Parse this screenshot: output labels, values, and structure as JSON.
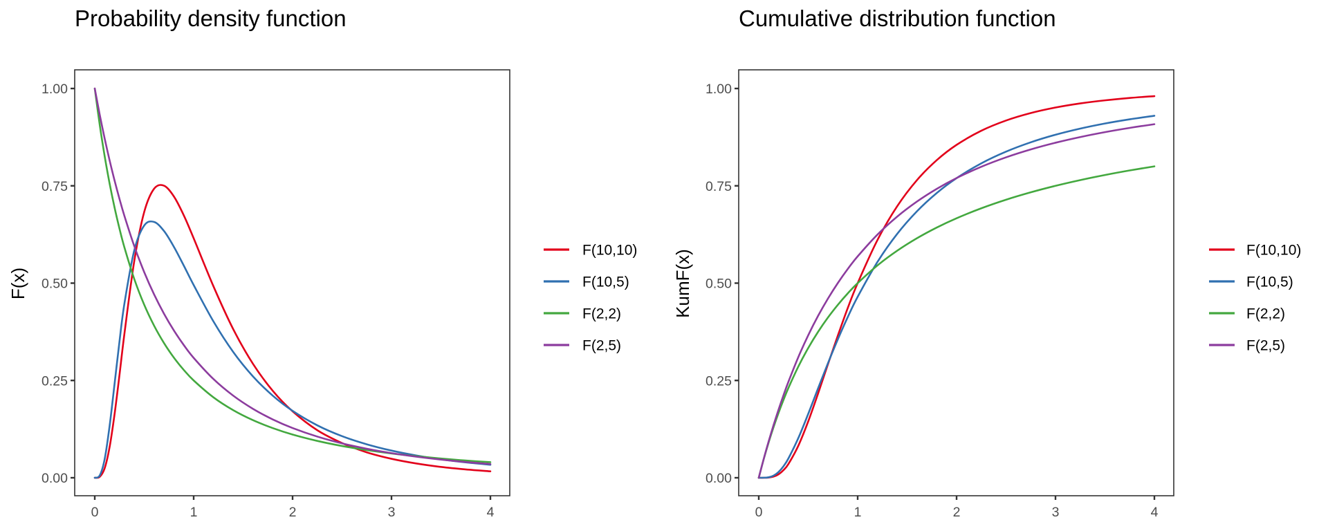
{
  "chart_data": [
    {
      "type": "line",
      "title": "Probability density function",
      "xlabel": "",
      "ylabel": "F(x)",
      "xlim": [
        0,
        4
      ],
      "ylim": [
        0,
        1
      ],
      "xticks": [
        0,
        1,
        2,
        3,
        4
      ],
      "xtick_labels": [
        "0",
        "1",
        "2",
        "3",
        "4"
      ],
      "yticks": [
        0,
        0.25,
        0.5,
        0.75,
        1.0
      ],
      "ytick_labels": [
        "0.00",
        "0.25",
        "0.50",
        "0.75",
        "1.00"
      ],
      "grid": false,
      "legend_position": "right",
      "x": [
        0,
        0.05,
        0.1,
        0.15,
        0.2,
        0.25,
        0.3,
        0.4,
        0.5,
        0.6,
        0.7,
        0.8,
        0.9,
        1.0,
        1.2,
        1.4,
        1.6,
        1.8,
        2.0,
        2.25,
        2.5,
        2.75,
        3.0,
        3.25,
        3.5,
        3.75,
        4.0
      ],
      "series": [
        {
          "name": "F(10,10)",
          "color": "#E2001A",
          "values": [
            0,
            0.0024,
            0.0243,
            0.0788,
            0.1628,
            0.2642,
            0.3702,
            0.5576,
            0.6828,
            0.7426,
            0.7503,
            0.7227,
            0.6742,
            0.6152,
            0.4919,
            0.3817,
            0.2925,
            0.2233,
            0.1707,
            0.1221,
            0.0892,
            0.0653,
            0.0487,
            0.0367,
            0.0278,
            0.0214,
            0.0165
          ]
        },
        {
          "name": "F(10,5)",
          "color": "#3070B0",
          "values": [
            0,
            0.0057,
            0.0478,
            0.1328,
            0.2407,
            0.3502,
            0.4477,
            0.5847,
            0.648,
            0.6572,
            0.6339,
            0.5933,
            0.5451,
            0.4951,
            0.4016,
            0.3231,
            0.2603,
            0.2108,
            0.1719,
            0.1347,
            0.1069,
            0.086,
            0.0698,
            0.0573,
            0.0474,
            0.0396,
            0.0334
          ]
        },
        {
          "name": "F(2,2)",
          "color": "#43A83F",
          "values": [
            1.0,
            0.907,
            0.8264,
            0.7561,
            0.6944,
            0.64,
            0.5917,
            0.5102,
            0.4444,
            0.3906,
            0.346,
            0.3086,
            0.277,
            0.25,
            0.2066,
            0.1736,
            0.1479,
            0.1276,
            0.1111,
            0.0947,
            0.0816,
            0.0711,
            0.0625,
            0.0554,
            0.0494,
            0.0443,
            0.04
          ]
        },
        {
          "name": "F(2,5)",
          "color": "#8C3C9E",
          "values": [
            1.0,
            0.933,
            0.8717,
            0.8155,
            0.7639,
            0.7164,
            0.6726,
            0.5948,
            0.5283,
            0.471,
            0.4215,
            0.3784,
            0.3409,
            0.308,
            0.2536,
            0.2109,
            0.177,
            0.1498,
            0.1278,
            0.1058,
            0.0884,
            0.0745,
            0.0633,
            0.0542,
            0.0467,
            0.0405,
            0.0353
          ]
        }
      ]
    },
    {
      "type": "line",
      "title": "Cumulative distribution function",
      "xlabel": "",
      "ylabel": "KumF(x)",
      "xlim": [
        0,
        4
      ],
      "ylim": [
        0,
        1
      ],
      "xticks": [
        0,
        1,
        2,
        3,
        4
      ],
      "xtick_labels": [
        "0",
        "1",
        "2",
        "3",
        "4"
      ],
      "yticks": [
        0,
        0.25,
        0.5,
        0.75,
        1.0
      ],
      "ytick_labels": [
        "0.00",
        "0.25",
        "0.50",
        "0.75",
        "1.00"
      ],
      "grid": false,
      "legend_position": "right",
      "x": [
        0,
        0.05,
        0.1,
        0.15,
        0.2,
        0.25,
        0.3,
        0.4,
        0.5,
        0.6,
        0.7,
        0.8,
        0.9,
        1.0,
        1.2,
        1.4,
        1.6,
        1.8,
        2.0,
        2.25,
        2.5,
        2.75,
        3.0,
        3.25,
        3.5,
        3.75,
        4.0
      ],
      "series": [
        {
          "name": "F(10,10)",
          "color": "#E2001A",
          "values": [
            0,
            0.0,
            0.0006,
            0.003,
            0.0089,
            0.0196,
            0.0354,
            0.0823,
            0.1448,
            0.2166,
            0.2921,
            0.3655,
            0.4362,
            0.5,
            0.6107,
            0.6977,
            0.7648,
            0.816,
            0.8552,
            0.8915,
            0.9177,
            0.9369,
            0.9511,
            0.9617,
            0.9696,
            0.9757,
            0.9804
          ]
        },
        {
          "name": "F(10,5)",
          "color": "#3070B0",
          "values": [
            0,
            0.0001,
            0.0012,
            0.0056,
            0.0148,
            0.0296,
            0.0497,
            0.102,
            0.1641,
            0.2298,
            0.2945,
            0.356,
            0.4129,
            0.4649,
            0.5544,
            0.6266,
            0.6847,
            0.7316,
            0.7697,
            0.8078,
            0.8378,
            0.8618,
            0.8812,
            0.897,
            0.9101,
            0.9209,
            0.93
          ]
        },
        {
          "name": "F(2,2)",
          "color": "#43A83F",
          "values": [
            0,
            0.0476,
            0.0909,
            0.1304,
            0.1667,
            0.2,
            0.2308,
            0.2857,
            0.3333,
            0.375,
            0.4118,
            0.4444,
            0.4737,
            0.5,
            0.5455,
            0.5833,
            0.6154,
            0.6429,
            0.6667,
            0.6923,
            0.7143,
            0.7333,
            0.75,
            0.7647,
            0.7778,
            0.7895,
            0.8
          ]
        },
        {
          "name": "F(2,5)",
          "color": "#8C3C9E",
          "values": [
            0,
            0.0483,
            0.0934,
            0.1356,
            0.175,
            0.212,
            0.2467,
            0.31,
            0.3661,
            0.416,
            0.4605,
            0.5005,
            0.5364,
            0.5688,
            0.6247,
            0.671,
            0.7097,
            0.7423,
            0.77,
            0.799,
            0.8232,
            0.8435,
            0.8607,
            0.8753,
            0.8879,
            0.8988,
            0.9083
          ]
        }
      ]
    }
  ]
}
